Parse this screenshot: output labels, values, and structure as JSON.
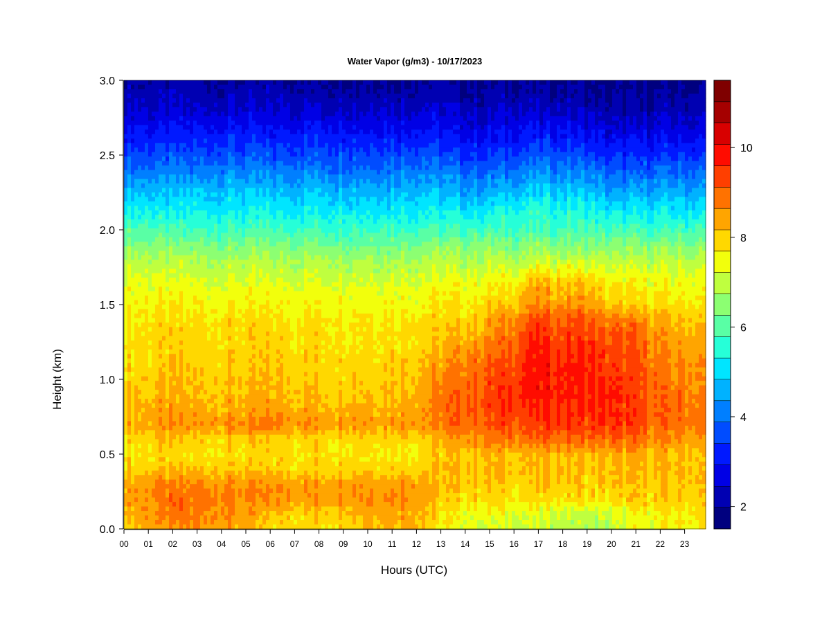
{
  "chart_data": {
    "type": "heatmap",
    "title": "Water Vapor (g/m3) - 10/17/2023",
    "xlabel": "Hours (UTC)",
    "ylabel": "Height (km)",
    "x_ticks": [
      "00",
      "01",
      "02",
      "03",
      "04",
      "05",
      "06",
      "07",
      "08",
      "09",
      "10",
      "11",
      "12",
      "13",
      "14",
      "15",
      "16",
      "17",
      "18",
      "19",
      "20",
      "21",
      "22",
      "23"
    ],
    "xlim": [
      0,
      24
    ],
    "y_ticks": [
      "0.0",
      "0.5",
      "1.0",
      "1.5",
      "2.0",
      "2.5",
      "3.0"
    ],
    "ylim": [
      0,
      3
    ],
    "colorbar": {
      "range": [
        1.5,
        11.5
      ],
      "tick_values": [
        2,
        4,
        6,
        8,
        10
      ],
      "tick_labels": [
        "2",
        "4",
        "6",
        "8",
        "10"
      ],
      "levels": [
        "#00007f",
        "#0000b2",
        "#0000e5",
        "#0019ff",
        "#004cff",
        "#007fff",
        "#00b2ff",
        "#00e5ff",
        "#26ffd8",
        "#59ffa5",
        "#8cff72",
        "#bfff3f",
        "#f2ff0c",
        "#ffd800",
        "#ffa500",
        "#ff7200",
        "#ff3f00",
        "#ff0c00",
        "#d80000",
        "#a50000",
        "#7f0000"
      ]
    },
    "profile_heights_km": [
      0.0,
      0.1,
      0.2,
      0.3,
      0.4,
      0.5,
      0.6,
      0.7,
      0.8,
      0.9,
      1.0,
      1.1,
      1.2,
      1.3,
      1.4,
      1.5,
      1.6,
      1.7,
      1.8,
      1.9,
      2.0,
      2.1,
      2.2,
      2.3,
      2.4,
      2.5,
      2.6,
      2.7,
      2.8,
      2.9,
      3.0
    ],
    "profile_hours_utc": [
      0,
      2,
      4,
      6,
      8,
      10,
      12,
      13,
      14,
      15,
      16,
      17,
      18,
      19,
      20,
      21,
      22,
      23.9
    ],
    "water_vapor_gm3": [
      [
        8.0,
        8.5,
        8.6,
        7.9,
        7.8,
        8.2,
        8.4,
        7.5,
        7.3,
        7.3,
        7.2,
        7.0,
        7.0,
        6.8,
        6.9,
        7.3,
        7.5,
        7.7
      ],
      [
        8.3,
        8.8,
        8.7,
        8.1,
        8.0,
        8.4,
        8.5,
        7.8,
        7.5,
        7.5,
        7.3,
        7.2,
        7.1,
        7.0,
        7.0,
        7.4,
        7.6,
        7.8
      ],
      [
        8.5,
        8.9,
        8.8,
        8.6,
        8.6,
        8.8,
        8.7,
        8.0,
        7.9,
        7.9,
        7.8,
        7.8,
        7.9,
        7.8,
        7.8,
        8.0,
        8.0,
        8.0
      ],
      [
        8.4,
        8.7,
        8.6,
        8.5,
        8.5,
        8.6,
        8.6,
        8.1,
        8.1,
        8.1,
        8.0,
        8.0,
        8.1,
        8.0,
        8.0,
        8.1,
        8.1,
        8.1
      ],
      [
        8.0,
        8.1,
        8.1,
        8.0,
        8.0,
        8.0,
        8.0,
        8.1,
        8.2,
        8.2,
        8.1,
        8.1,
        8.2,
        8.1,
        8.1,
        8.2,
        8.2,
        8.2
      ],
      [
        7.8,
        7.8,
        7.8,
        7.8,
        7.8,
        7.8,
        7.8,
        8.0,
        8.2,
        8.3,
        8.2,
        8.2,
        8.3,
        8.2,
        8.2,
        8.3,
        8.2,
        8.1
      ],
      [
        7.9,
        8.0,
        8.0,
        8.0,
        8.0,
        8.0,
        8.0,
        8.2,
        8.6,
        8.8,
        8.9,
        9.0,
        9.0,
        9.0,
        9.0,
        8.9,
        8.7,
        8.5
      ],
      [
        8.3,
        8.6,
        8.6,
        8.8,
        8.6,
        8.6,
        8.6,
        8.8,
        9.0,
        9.2,
        9.3,
        9.4,
        9.5,
        9.4,
        9.5,
        9.4,
        9.0,
        8.8
      ],
      [
        8.2,
        8.4,
        8.3,
        8.4,
        8.3,
        8.4,
        8.4,
        8.8,
        9.1,
        9.3,
        9.5,
        9.6,
        9.6,
        9.6,
        9.6,
        9.4,
        9.0,
        8.8
      ],
      [
        8.1,
        8.2,
        8.2,
        8.3,
        8.2,
        8.2,
        8.3,
        8.8,
        9.1,
        9.3,
        9.6,
        9.8,
        9.7,
        9.7,
        9.6,
        9.4,
        9.0,
        8.7
      ],
      [
        8.0,
        8.1,
        8.1,
        8.1,
        8.1,
        8.1,
        8.2,
        8.6,
        9.0,
        9.2,
        9.5,
        9.9,
        9.7,
        9.8,
        9.5,
        9.3,
        8.9,
        8.6
      ],
      [
        7.9,
        8.0,
        8.0,
        8.0,
        8.0,
        8.0,
        8.1,
        8.4,
        8.8,
        9.0,
        9.3,
        9.8,
        9.6,
        9.7,
        9.4,
        9.2,
        8.8,
        8.5
      ],
      [
        7.9,
        7.9,
        7.9,
        7.9,
        7.9,
        7.9,
        8.0,
        8.2,
        8.5,
        8.8,
        9.2,
        9.7,
        9.5,
        9.6,
        9.3,
        9.2,
        8.7,
        8.4
      ],
      [
        7.8,
        7.9,
        7.9,
        7.9,
        7.9,
        7.9,
        7.9,
        8.0,
        8.2,
        8.5,
        9.0,
        9.5,
        9.3,
        9.4,
        9.1,
        9.0,
        8.5,
        8.3
      ],
      [
        7.7,
        7.8,
        7.8,
        7.8,
        7.8,
        7.8,
        7.8,
        7.9,
        8.0,
        8.3,
        8.7,
        9.3,
        9.1,
        9.2,
        8.8,
        8.7,
        8.3,
        8.1
      ],
      [
        7.6,
        7.6,
        7.6,
        7.6,
        7.6,
        7.6,
        7.6,
        7.7,
        7.8,
        7.9,
        8.1,
        8.7,
        8.5,
        8.6,
        8.0,
        7.9,
        7.8,
        7.7
      ],
      [
        7.5,
        7.4,
        7.4,
        7.4,
        7.4,
        7.4,
        7.4,
        7.5,
        7.5,
        7.6,
        7.8,
        8.4,
        8.3,
        8.3,
        7.7,
        7.7,
        7.6,
        7.5
      ],
      [
        7.3,
        7.1,
        7.1,
        7.1,
        7.1,
        7.1,
        7.1,
        7.2,
        7.2,
        7.3,
        7.4,
        7.8,
        7.7,
        7.7,
        7.3,
        7.3,
        7.3,
        7.3
      ],
      [
        7.0,
        6.8,
        6.8,
        6.8,
        6.8,
        6.8,
        6.8,
        6.9,
        6.9,
        6.9,
        6.9,
        7.0,
        7.0,
        7.0,
        6.9,
        6.9,
        6.9,
        6.9
      ],
      [
        6.5,
        6.3,
        6.3,
        6.3,
        6.3,
        6.3,
        6.3,
        6.4,
        6.4,
        6.4,
        6.4,
        6.4,
        6.4,
        6.4,
        6.4,
        6.4,
        6.4,
        6.4
      ],
      [
        6.0,
        5.8,
        5.8,
        5.8,
        5.8,
        5.8,
        5.8,
        5.8,
        5.8,
        5.8,
        5.8,
        5.8,
        5.8,
        5.8,
        5.8,
        5.8,
        5.8,
        5.8
      ],
      [
        5.5,
        5.3,
        5.4,
        5.3,
        5.4,
        5.3,
        5.4,
        5.4,
        5.3,
        5.3,
        5.5,
        5.6,
        5.5,
        5.5,
        5.2,
        5.2,
        5.3,
        5.3
      ],
      [
        5.0,
        4.9,
        5.0,
        4.9,
        5.0,
        4.9,
        5.0,
        5.0,
        4.8,
        4.8,
        5.0,
        5.2,
        5.1,
        5.1,
        4.7,
        4.7,
        4.8,
        4.8
      ],
      [
        4.5,
        4.5,
        4.6,
        4.5,
        4.6,
        4.5,
        4.6,
        4.5,
        4.3,
        4.3,
        4.5,
        4.7,
        4.6,
        4.6,
        4.2,
        4.2,
        4.3,
        4.3
      ],
      [
        4.0,
        4.0,
        4.1,
        4.0,
        4.1,
        4.0,
        4.1,
        4.0,
        3.8,
        3.8,
        4.0,
        4.2,
        4.1,
        4.1,
        3.7,
        3.7,
        3.8,
        3.8
      ],
      [
        3.6,
        3.6,
        3.7,
        3.6,
        3.7,
        3.6,
        3.7,
        3.6,
        3.4,
        3.4,
        3.5,
        3.7,
        3.6,
        3.6,
        3.2,
        3.2,
        3.3,
        3.3
      ],
      [
        3.2,
        3.2,
        3.3,
        3.2,
        3.3,
        3.2,
        3.3,
        3.2,
        3.0,
        3.0,
        3.1,
        3.2,
        3.2,
        3.1,
        2.8,
        2.8,
        2.9,
        2.9
      ],
      [
        2.8,
        2.8,
        2.9,
        2.8,
        2.9,
        2.8,
        2.9,
        2.8,
        2.6,
        2.6,
        2.7,
        2.8,
        2.8,
        2.7,
        2.4,
        2.4,
        2.5,
        2.5
      ],
      [
        2.5,
        2.5,
        2.5,
        2.5,
        2.5,
        2.5,
        2.5,
        2.5,
        2.3,
        2.3,
        2.4,
        2.4,
        2.4,
        2.3,
        2.1,
        2.1,
        2.2,
        2.2
      ],
      [
        2.3,
        2.2,
        2.2,
        2.2,
        2.2,
        2.2,
        2.2,
        2.2,
        2.1,
        2.1,
        2.1,
        2.1,
        2.1,
        2.0,
        1.9,
        1.9,
        2.0,
        2.0
      ],
      [
        2.1,
        2.0,
        2.0,
        2.0,
        2.0,
        2.0,
        2.0,
        2.0,
        1.9,
        1.9,
        1.9,
        1.9,
        1.9,
        1.8,
        1.7,
        1.8,
        1.8,
        1.8
      ]
    ]
  }
}
